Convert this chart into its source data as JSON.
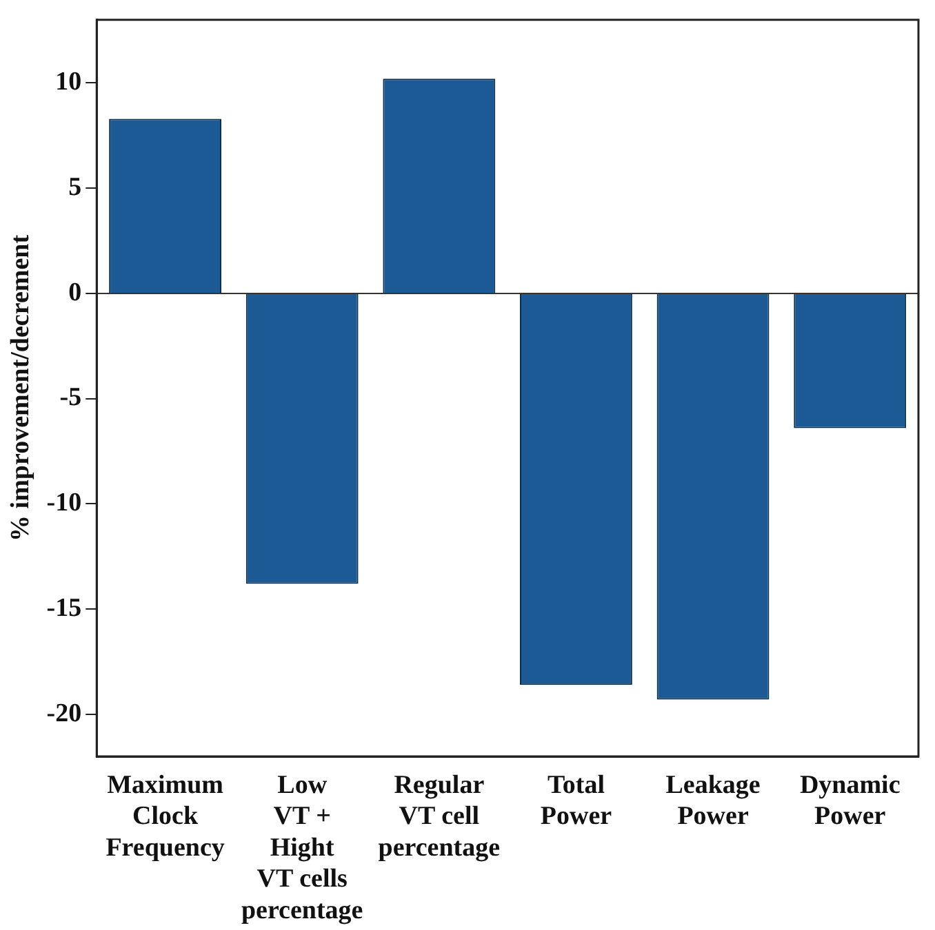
{
  "chart_data": {
    "type": "bar",
    "ylabel": "% improvement/decrement",
    "categories": [
      "Maximum\nClock\nFrequency",
      "Low\nVT +\nHight\nVT cells\npercentage",
      "Regular\nVT cell\npercentage",
      "Total\nPower",
      "Leakage\nPower",
      "Dynamic\nPower"
    ],
    "values": [
      8.3,
      -13.8,
      10.2,
      -18.6,
      -19.3,
      -6.4
    ],
    "color": "#1b5a94",
    "ylim": [
      -22,
      13
    ],
    "yticks": [
      -20,
      -15,
      -10,
      -5,
      0,
      5,
      10
    ],
    "grid": false,
    "ref_lines": [
      {
        "axis": "y",
        "value": 0,
        "color": "#333333"
      }
    ],
    "legend": false
  }
}
